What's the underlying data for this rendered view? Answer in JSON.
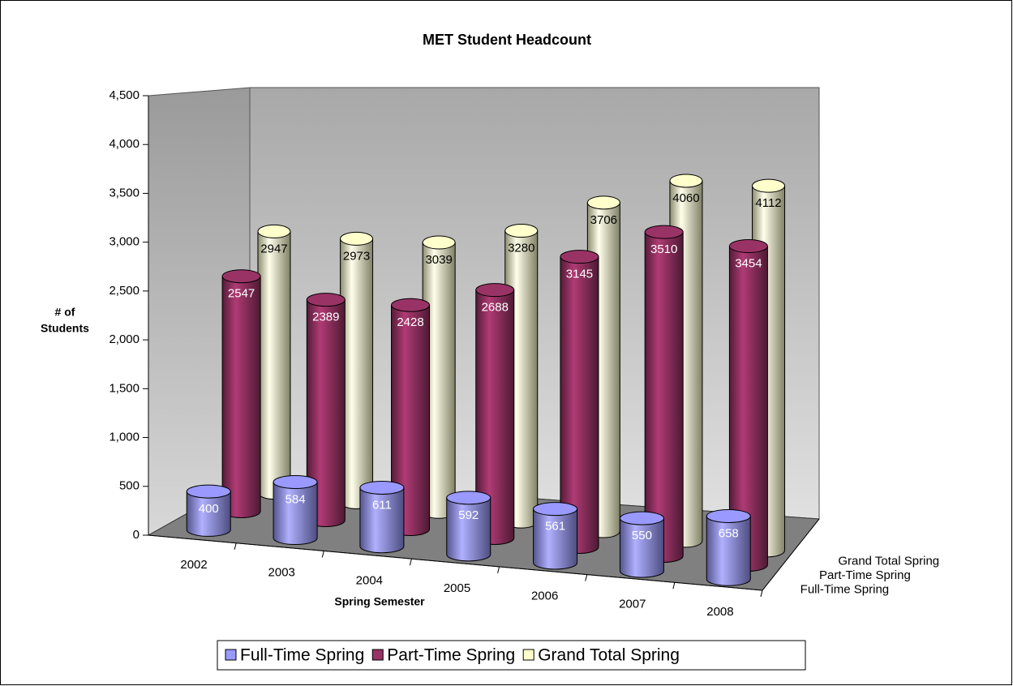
{
  "chart_data": {
    "type": "cylinder3d",
    "title": "MET Student Headcount",
    "ylabel": [
      "# of",
      "Students"
    ],
    "xlabel": "Spring Semester",
    "categories": [
      "2002",
      "2003",
      "2004",
      "2005",
      "2006",
      "2007",
      "2008"
    ],
    "series": [
      {
        "name": "Full-Time Spring",
        "color": "#9999ff",
        "label_color": "#ffffff",
        "values": [
          400,
          584,
          611,
          592,
          561,
          550,
          658
        ]
      },
      {
        "name": "Part-Time Spring",
        "color": "#993366",
        "label_color": "#ffffff",
        "values": [
          2547,
          2389,
          2428,
          2688,
          3145,
          3510,
          3454
        ]
      },
      {
        "name": "Grand Total Spring",
        "color": "#ffffcc",
        "label_color": "#000000",
        "values": [
          2947,
          2973,
          3039,
          3280,
          3706,
          4060,
          4112
        ]
      }
    ],
    "ylim": [
      0,
      4500
    ],
    "yticks": [
      0,
      500,
      {
        "value": 1000,
        "label": "1,000"
      },
      {
        "value": 1500,
        "label": "1,500"
      },
      {
        "value": 2000,
        "label": "2,000"
      },
      {
        "value": 2500,
        "label": "2,500"
      },
      {
        "value": 3000,
        "label": "3,000"
      },
      {
        "value": 3500,
        "label": "3,500"
      },
      {
        "value": 4000,
        "label": "4,000"
      },
      {
        "value": 4500,
        "label": "4,500"
      }
    ],
    "grid": false,
    "legend": "bottom"
  }
}
